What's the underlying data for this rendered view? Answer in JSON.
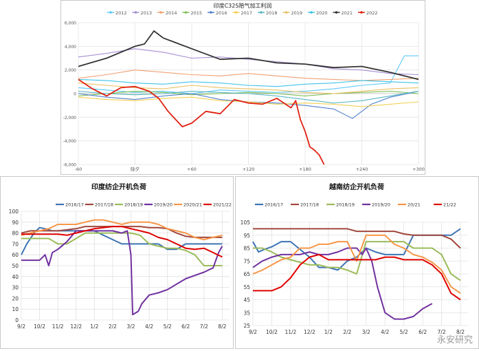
{
  "chart_data": [
    {
      "type": "line",
      "title": "印度C32S赔气加工利润",
      "x_ticks": [
        "-60",
        "除夕",
        "+60",
        "+120",
        "+180",
        "+240",
        "+300"
      ],
      "x_tick_values": [
        -60,
        0,
        60,
        120,
        180,
        240,
        300
      ],
      "xlim": [
        -60,
        300
      ],
      "y_ticks": [
        "6,000",
        "4,000",
        "2,000",
        "0",
        "-2,000",
        "-4,000",
        "-6,000"
      ],
      "ylim": [
        -6000,
        6000
      ],
      "grid": true,
      "legend_position": "top",
      "series": [
        {
          "name": "2012",
          "color": "#5bc8f5",
          "x": [
            -60,
            -30,
            0,
            30,
            60,
            90,
            120,
            150,
            180,
            210,
            240,
            270,
            285,
            300
          ],
          "y": [
            500,
            300,
            100,
            200,
            0,
            300,
            200,
            100,
            200,
            400,
            700,
            900,
            3200,
            3200
          ]
        },
        {
          "name": "2013",
          "color": "#a48dd2",
          "x": [
            -60,
            -30,
            0,
            30,
            60,
            90,
            120,
            150,
            180,
            210,
            240,
            270,
            300
          ],
          "y": [
            3100,
            3400,
            3800,
            3500,
            3000,
            3100,
            2900,
            2700,
            2500,
            2100,
            2000,
            1700,
            1600
          ]
        },
        {
          "name": "2014",
          "color": "#f0a070",
          "x": [
            -60,
            -30,
            0,
            30,
            60,
            90,
            120,
            150,
            180,
            210,
            240,
            270,
            300
          ],
          "y": [
            1300,
            1600,
            2000,
            1800,
            1600,
            1500,
            1700,
            1500,
            1300,
            1200,
            1100,
            1200,
            1300
          ]
        },
        {
          "name": "2015",
          "color": "#7fbf50",
          "x": [
            -60,
            -30,
            0,
            30,
            60,
            90,
            120,
            150,
            180,
            210,
            240,
            270,
            300
          ],
          "y": [
            -200,
            0,
            200,
            100,
            -100,
            0,
            100,
            0,
            -200,
            0,
            100,
            200,
            0
          ]
        },
        {
          "name": "2016",
          "color": "#4f7fcf",
          "x": [
            -60,
            -30,
            0,
            30,
            60,
            90,
            120,
            150,
            180,
            210,
            230,
            250,
            270,
            300
          ],
          "y": [
            0,
            -300,
            -500,
            -200,
            0,
            -500,
            -700,
            -800,
            -1000,
            -1300,
            -2100,
            -900,
            -300,
            200
          ]
        },
        {
          "name": "2017",
          "color": "#f2d050",
          "x": [
            -60,
            -30,
            0,
            30,
            60,
            90,
            120,
            150,
            180,
            210,
            240,
            270,
            300
          ],
          "y": [
            -300,
            -500,
            -600,
            -400,
            -300,
            -600,
            -700,
            -900,
            -800,
            -900,
            -1100,
            -900,
            -700
          ]
        },
        {
          "name": "2018",
          "color": "#57b7c4",
          "x": [
            -60,
            -30,
            0,
            30,
            60,
            90,
            120,
            150,
            180,
            210,
            240,
            270,
            300
          ],
          "y": [
            200,
            0,
            -100,
            0,
            200,
            100,
            0,
            -200,
            -500,
            -800,
            -600,
            -200,
            200
          ]
        },
        {
          "name": "2019",
          "color": "#e8c060",
          "x": [
            -60,
            -30,
            0,
            30,
            60,
            90,
            120,
            150,
            180,
            210,
            240,
            270,
            300
          ],
          "y": [
            900,
            700,
            500,
            400,
            700,
            500,
            400,
            300,
            100,
            0,
            200,
            400,
            500
          ]
        },
        {
          "name": "2020",
          "color": "#3ec3e6",
          "x": [
            -60,
            -30,
            0,
            30,
            60,
            90,
            120,
            150,
            180,
            210,
            240,
            270,
            300
          ],
          "y": [
            1200,
            1100,
            900,
            800,
            1000,
            900,
            700,
            600,
            800,
            900,
            1100,
            1000,
            900
          ]
        },
        {
          "name": "2021",
          "color": "#333333",
          "x": [
            -60,
            -30,
            0,
            10,
            20,
            30,
            60,
            90,
            120,
            150,
            180,
            210,
            240,
            270,
            300
          ],
          "y": [
            2300,
            3000,
            4000,
            4200,
            5300,
            4700,
            3800,
            2900,
            3000,
            2600,
            2500,
            2200,
            2300,
            1800,
            1200
          ]
        },
        {
          "name": "2022",
          "color": "#e02010",
          "x": [
            -60,
            -45,
            -30,
            -15,
            0,
            15,
            25,
            35,
            50,
            60,
            75,
            90,
            105,
            120,
            135,
            150,
            165,
            170,
            175,
            180,
            185,
            190,
            195,
            200
          ],
          "y": [
            1200,
            400,
            -200,
            500,
            600,
            200,
            -400,
            -1500,
            -2800,
            -2500,
            -1500,
            -1700,
            -500,
            -800,
            -900,
            -400,
            -1200,
            -600,
            -2200,
            -3200,
            -4500,
            -4800,
            -5200,
            -6000
          ]
        }
      ]
    },
    {
      "type": "line",
      "title": "印度纺企开机负荷",
      "x_ticks": [
        "9/2",
        "10/2",
        "11/2",
        "12/2",
        "1/2",
        "2/2",
        "3/2",
        "4/2",
        "5/2",
        "6/2",
        "7/2",
        "8/2"
      ],
      "ylim": [
        0,
        100
      ],
      "y_ticks": [
        "0",
        "10",
        "20",
        "30",
        "40",
        "50",
        "60",
        "70",
        "80",
        "90",
        "100"
      ],
      "grid": true,
      "legend_position": "top",
      "series": [
        {
          "name": "2016/17",
          "color": "#3c73b4",
          "x": [
            0,
            0.3,
            0.7,
            1.0,
            1.3,
            1.7,
            2.0,
            2.5,
            3.0,
            3.5,
            4.0,
            4.5,
            5.0,
            5.5,
            6.0,
            6.3,
            6.7,
            7.0,
            7.5,
            8.0,
            8.5,
            9.0,
            9.5,
            10.0,
            10.5,
            11.0
          ],
          "y": [
            60,
            70,
            80,
            85,
            84,
            82,
            82,
            82,
            82,
            82,
            82,
            78,
            74,
            70,
            70,
            70,
            70,
            70,
            70,
            65,
            65,
            70,
            70,
            70,
            70,
            70
          ]
        },
        {
          "name": "2017/18",
          "color": "#a0473c",
          "x": [
            0,
            0.5,
            1.0,
            1.5,
            2.0,
            2.5,
            3.0,
            3.5,
            4.0,
            4.5,
            5.0,
            5.5,
            6.0,
            6.5,
            7.0,
            7.5,
            8.0,
            8.5,
            9.0,
            9.5,
            10.0,
            10.5,
            11.0
          ],
          "y": [
            80,
            82,
            82,
            82,
            82,
            83,
            84,
            86,
            86,
            86,
            86,
            86,
            86,
            86,
            85,
            85,
            84,
            80,
            77,
            76,
            76,
            76,
            76
          ]
        },
        {
          "name": "2018/19",
          "color": "#9bbb59",
          "x": [
            0,
            0.5,
            1.0,
            1.5,
            2.0,
            2.5,
            3.0,
            3.5,
            4.0,
            4.5,
            5.0,
            5.5,
            6.0,
            6.5,
            7.0,
            7.5,
            8.0,
            8.5,
            9.0,
            9.5,
            10.0,
            10.5,
            11.0
          ],
          "y": [
            75,
            75,
            75,
            75,
            70,
            70,
            75,
            80,
            80,
            80,
            80,
            80,
            80,
            78,
            70,
            68,
            66,
            66,
            64,
            60,
            50,
            50,
            50
          ]
        },
        {
          "name": "2019/20",
          "color": "#7030a0",
          "x": [
            0,
            0.5,
            1.0,
            1.3,
            1.5,
            1.7,
            2.0,
            2.5,
            3.0,
            3.5,
            4.0,
            4.5,
            5.0,
            5.5,
            5.8,
            6.0,
            6.1,
            6.4,
            6.6,
            7.0,
            7.5,
            8.0,
            8.5,
            9.0,
            9.5,
            10.0,
            10.5,
            10.8,
            11.0
          ],
          "y": [
            55,
            55,
            55,
            60,
            50,
            62,
            65,
            72,
            82,
            82,
            82,
            82,
            82,
            80,
            82,
            60,
            5,
            8,
            15,
            23,
            25,
            28,
            33,
            38,
            41,
            44,
            48,
            62,
            68
          ]
        },
        {
          "name": "2020/21",
          "color": "#f79646",
          "x": [
            0,
            0.5,
            1.0,
            1.5,
            2.0,
            2.5,
            3.0,
            3.5,
            4.0,
            4.5,
            5.0,
            5.5,
            6.0,
            6.5,
            7.0,
            7.5,
            8.0,
            8.5,
            9.0,
            9.5,
            10.0,
            10.5,
            11.0
          ],
          "y": [
            78,
            80,
            82,
            84,
            88,
            88,
            88,
            90,
            92,
            92,
            90,
            88,
            90,
            90,
            90,
            88,
            84,
            82,
            80,
            76,
            74,
            76,
            78
          ]
        },
        {
          "name": "2021/22",
          "color": "#e00000",
          "x": [
            0,
            0.5,
            1.0,
            1.5,
            2.0,
            2.5,
            3.0,
            3.5,
            4.0,
            4.5,
            5.0,
            5.5,
            6.0,
            6.5,
            7.0,
            7.5,
            8.0,
            8.5,
            9.0,
            9.5,
            10.0,
            10.5,
            11.0
          ],
          "y": [
            79,
            79,
            79,
            79,
            79,
            78,
            80,
            82,
            84,
            85,
            86,
            86,
            84,
            82,
            80,
            76,
            74,
            70,
            66,
            65,
            66,
            62,
            58
          ]
        }
      ]
    },
    {
      "type": "line",
      "title": "越南纺企开机负荷",
      "x_ticks": [
        "9/2",
        "10/2",
        "11/2",
        "12/2",
        "1/2",
        "2/2",
        "3/2",
        "4/2",
        "5/2",
        "6/2",
        "7/2",
        "8/2"
      ],
      "ylim": [
        25,
        105
      ],
      "y_ticks": [
        "25",
        "35",
        "45",
        "55",
        "65",
        "75",
        "85",
        "95",
        "105"
      ],
      "grid": true,
      "legend_position": "top",
      "series": [
        {
          "name": "2016/17",
          "color": "#3c73b4",
          "x": [
            0,
            0.3,
            0.6,
            1.0,
            1.5,
            2.0,
            2.5,
            3.0,
            3.5,
            4.0,
            4.5,
            5.0,
            5.5,
            6.0,
            6.5,
            7.0,
            7.5,
            8.0,
            8.5,
            9.0,
            9.5,
            10.0,
            10.5,
            11.0
          ],
          "y": [
            90,
            82,
            84,
            86,
            90,
            90,
            84,
            78,
            70,
            70,
            68,
            75,
            78,
            85,
            82,
            80,
            80,
            80,
            95,
            95,
            95,
            95,
            95,
            100
          ]
        },
        {
          "name": "2017/18",
          "color": "#a0473c",
          "x": [
            0,
            0.5,
            1.0,
            1.5,
            2.0,
            2.5,
            3.0,
            3.5,
            4.0,
            4.5,
            5.0,
            5.5,
            6.0,
            6.5,
            7.0,
            7.5,
            8.0,
            8.5,
            9.0,
            9.5,
            10.0,
            10.5,
            11.0
          ],
          "y": [
            100,
            100,
            100,
            100,
            100,
            100,
            100,
            100,
            100,
            100,
            100,
            98,
            98,
            98,
            98,
            98,
            96,
            95,
            95,
            95,
            95,
            92,
            85
          ]
        },
        {
          "name": "2018/19",
          "color": "#9bbb59",
          "x": [
            0,
            0.5,
            1.0,
            1.5,
            2.0,
            2.5,
            3.0,
            3.5,
            4.0,
            4.5,
            5.0,
            5.5,
            6.0,
            6.5,
            7.0,
            7.5,
            8.0,
            8.5,
            9.0,
            9.5,
            10.0,
            10.5,
            11.0
          ],
          "y": [
            85,
            85,
            82,
            78,
            76,
            74,
            72,
            72,
            70,
            70,
            68,
            65,
            90,
            90,
            90,
            90,
            90,
            85,
            85,
            85,
            80,
            65,
            60
          ]
        },
        {
          "name": "2019/20",
          "color": "#7030a0",
          "x": [
            0,
            0.5,
            1.0,
            1.5,
            2.0,
            2.5,
            3.0,
            3.5,
            4.0,
            4.5,
            5.0,
            5.5,
            5.8,
            6.0,
            6.3,
            6.6,
            7.0,
            7.5,
            8.0,
            8.5,
            9.0,
            9.5
          ],
          "y": [
            70,
            75,
            78,
            80,
            80,
            80,
            82,
            80,
            80,
            82,
            85,
            85,
            80,
            85,
            75,
            55,
            35,
            30,
            30,
            32,
            38,
            42
          ]
        },
        {
          "name": "20/21",
          "color": "#f79646",
          "x": [
            0,
            0.5,
            1.0,
            1.5,
            2.0,
            2.5,
            3.0,
            3.5,
            4.0,
            4.5,
            5.0,
            5.5,
            6.0,
            6.5,
            7.0,
            7.5,
            8.0,
            8.5,
            9.0,
            9.5,
            10.0,
            10.5,
            11.0
          ],
          "y": [
            65,
            68,
            72,
            76,
            78,
            85,
            85,
            88,
            88,
            90,
            90,
            75,
            95,
            95,
            95,
            88,
            85,
            80,
            78,
            74,
            68,
            55,
            50
          ]
        },
        {
          "name": "21/22",
          "color": "#e00000",
          "x": [
            0,
            0.5,
            1.0,
            1.5,
            2.0,
            2.5,
            3.0,
            3.5,
            4.0,
            4.5,
            5.0,
            5.5,
            6.0,
            6.5,
            7.0,
            7.5,
            8.0,
            8.5,
            9.0,
            9.5,
            10.0,
            10.5,
            11.0
          ],
          "y": [
            52,
            52,
            52,
            55,
            62,
            72,
            78,
            80,
            76,
            76,
            76,
            76,
            76,
            76,
            78,
            78,
            76,
            76,
            76,
            72,
            65,
            50,
            45
          ]
        }
      ]
    }
  ],
  "watermark": "永安研究"
}
